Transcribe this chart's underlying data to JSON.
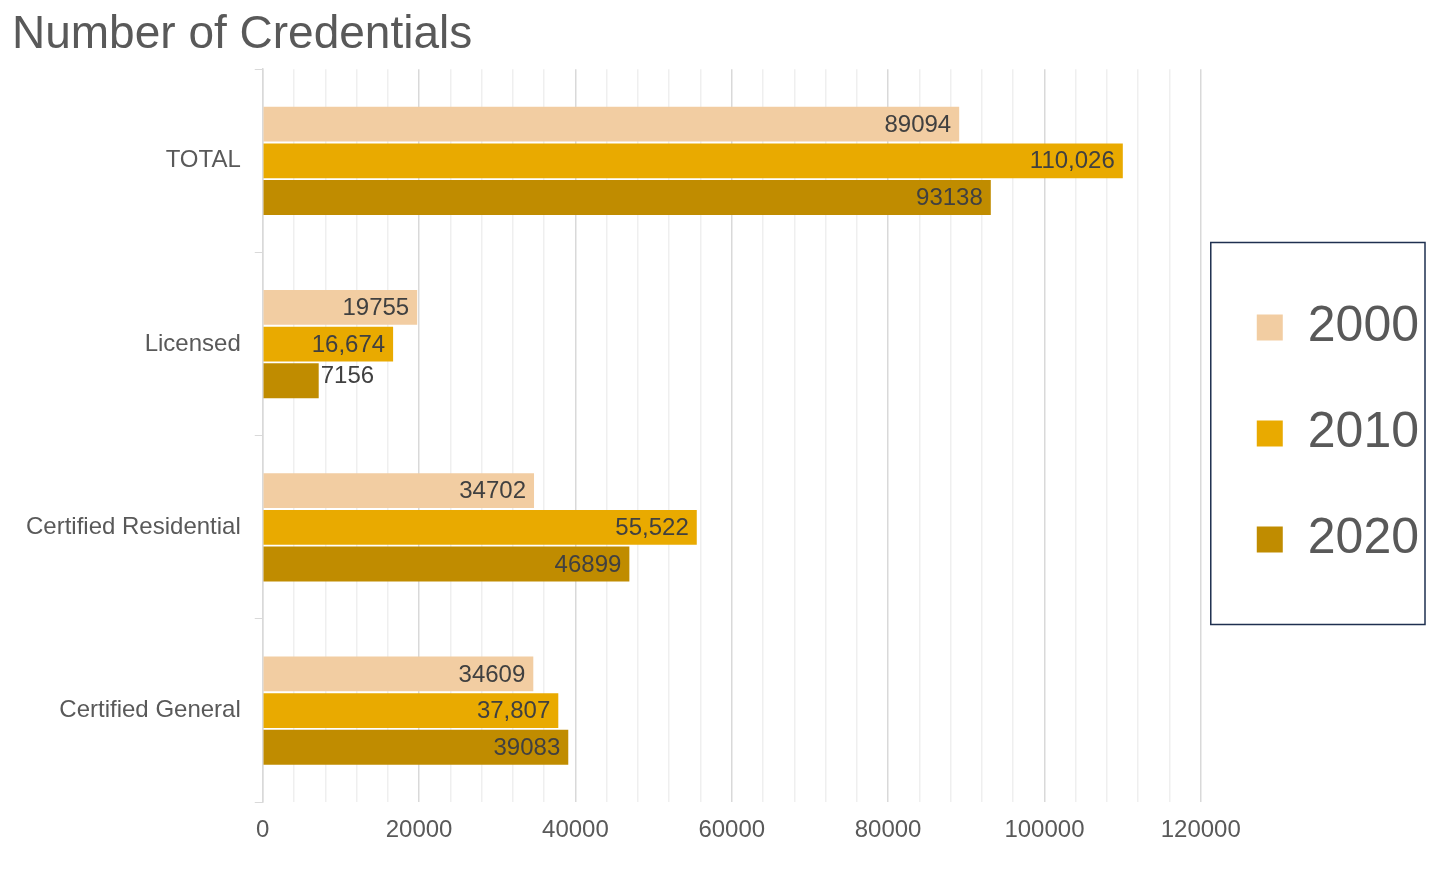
{
  "chart_data": {
    "type": "bar",
    "orientation": "horizontal",
    "title": "Number of Credentials",
    "categories": [
      "TOTAL",
      "Licensed",
      "Certified Residential",
      "Certified General"
    ],
    "series": [
      {
        "name": "2000",
        "color": "#f2cda2",
        "values": [
          89094,
          19755,
          34702,
          34609
        ],
        "value_labels": [
          "89094",
          "19755",
          "34702",
          "34609"
        ]
      },
      {
        "name": "2010",
        "color": "#e9aa00",
        "values": [
          110026,
          16674,
          55522,
          37807
        ],
        "value_labels": [
          "110,026",
          "16,674",
          "55,522",
          "37,807"
        ]
      },
      {
        "name": "2020",
        "color": "#c08c00",
        "values": [
          93138,
          7156,
          46899,
          39083
        ],
        "value_labels": [
          "93138",
          "7156",
          "46899",
          "39083"
        ]
      }
    ],
    "xlim": [
      0,
      120000
    ],
    "xticks": [
      0,
      {
        "value": 4000,
        "label": null
      },
      {
        "value": 8000,
        "label": null
      },
      {
        "value": 12000,
        "label": null
      },
      {
        "value": 16000,
        "label": null
      },
      20000,
      {
        "value": 24000,
        "label": null
      },
      {
        "value": 28000,
        "label": null
      },
      {
        "value": 32000,
        "label": null
      },
      {
        "value": 36000,
        "label": null
      },
      40000,
      {
        "value": 44000,
        "label": null
      },
      {
        "value": 48000,
        "label": null
      },
      {
        "value": 52000,
        "label": null
      },
      {
        "value": 56000,
        "label": null
      },
      60000,
      {
        "value": 64000,
        "label": null
      },
      {
        "value": 68000,
        "label": null
      },
      {
        "value": 72000,
        "label": null
      },
      {
        "value": 76000,
        "label": null
      },
      80000,
      {
        "value": 84000,
        "label": null
      },
      {
        "value": 88000,
        "label": null
      },
      {
        "value": 92000,
        "label": null
      },
      {
        "value": 96000,
        "label": null
      },
      100000,
      {
        "value": 104000,
        "label": null
      },
      {
        "value": 108000,
        "label": null
      },
      {
        "value": 112000,
        "label": null
      },
      {
        "value": 116000,
        "label": null
      },
      120000
    ],
    "grid": "x",
    "legend": "right"
  }
}
